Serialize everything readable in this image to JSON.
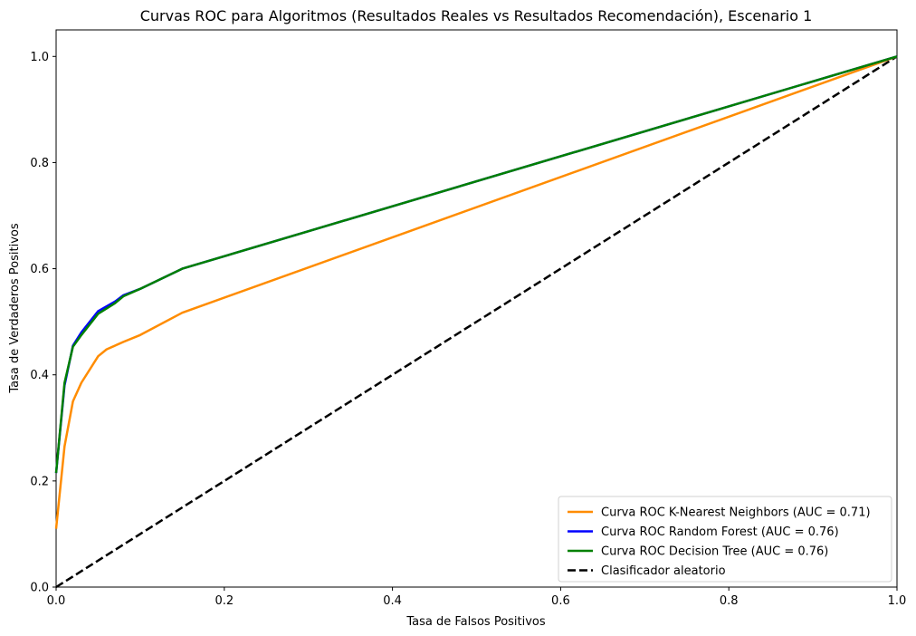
{
  "chart_data": {
    "type": "line",
    "title": "Curvas ROC para Algoritmos (Resultados Reales vs Resultados Recomendación), Escenario 1",
    "xlabel": "Tasa de Falsos Positivos",
    "ylabel": "Tasa de Verdaderos Positivos",
    "xlim": [
      0.0,
      1.0
    ],
    "ylim": [
      0.0,
      1.05
    ],
    "xticks": [
      "0.0",
      "0.2",
      "0.4",
      "0.6",
      "0.8",
      "1.0"
    ],
    "yticks": [
      "0.0",
      "0.2",
      "0.4",
      "0.6",
      "0.8",
      "1.0"
    ],
    "grid": false,
    "legend_position": "lower-right",
    "series": [
      {
        "name": "Curva ROC K-Nearest Neighbors (AUC = 0.71)",
        "color": "#ff8c00",
        "style": "solid",
        "points": [
          [
            0.0,
            0.11
          ],
          [
            0.01,
            0.265
          ],
          [
            0.02,
            0.35
          ],
          [
            0.03,
            0.385
          ],
          [
            0.04,
            0.41
          ],
          [
            0.05,
            0.435
          ],
          [
            0.06,
            0.448
          ],
          [
            0.08,
            0.462
          ],
          [
            0.1,
            0.475
          ],
          [
            0.15,
            0.517
          ],
          [
            1.0,
            1.0
          ]
        ]
      },
      {
        "name": "Curva ROC Random Forest (AUC = 0.76)",
        "color": "#0000ff",
        "style": "solid",
        "points": [
          [
            0.0,
            0.215
          ],
          [
            0.01,
            0.38
          ],
          [
            0.02,
            0.455
          ],
          [
            0.03,
            0.48
          ],
          [
            0.04,
            0.5
          ],
          [
            0.05,
            0.52
          ],
          [
            0.07,
            0.538
          ],
          [
            0.08,
            0.55
          ],
          [
            0.1,
            0.562
          ],
          [
            0.15,
            0.6
          ],
          [
            1.0,
            1.0
          ]
        ]
      },
      {
        "name": "Curva ROC Decision Tree (AUC = 0.76)",
        "color": "#008000",
        "style": "solid",
        "points": [
          [
            0.0,
            0.215
          ],
          [
            0.01,
            0.385
          ],
          [
            0.02,
            0.453
          ],
          [
            0.03,
            0.475
          ],
          [
            0.04,
            0.495
          ],
          [
            0.05,
            0.515
          ],
          [
            0.07,
            0.535
          ],
          [
            0.08,
            0.548
          ],
          [
            0.1,
            0.562
          ],
          [
            0.15,
            0.6
          ],
          [
            1.0,
            1.0
          ]
        ]
      },
      {
        "name": "Clasificador aleatorio",
        "color": "#000000",
        "style": "dashed",
        "points": [
          [
            0.0,
            0.0
          ],
          [
            1.0,
            1.0
          ]
        ]
      }
    ]
  }
}
